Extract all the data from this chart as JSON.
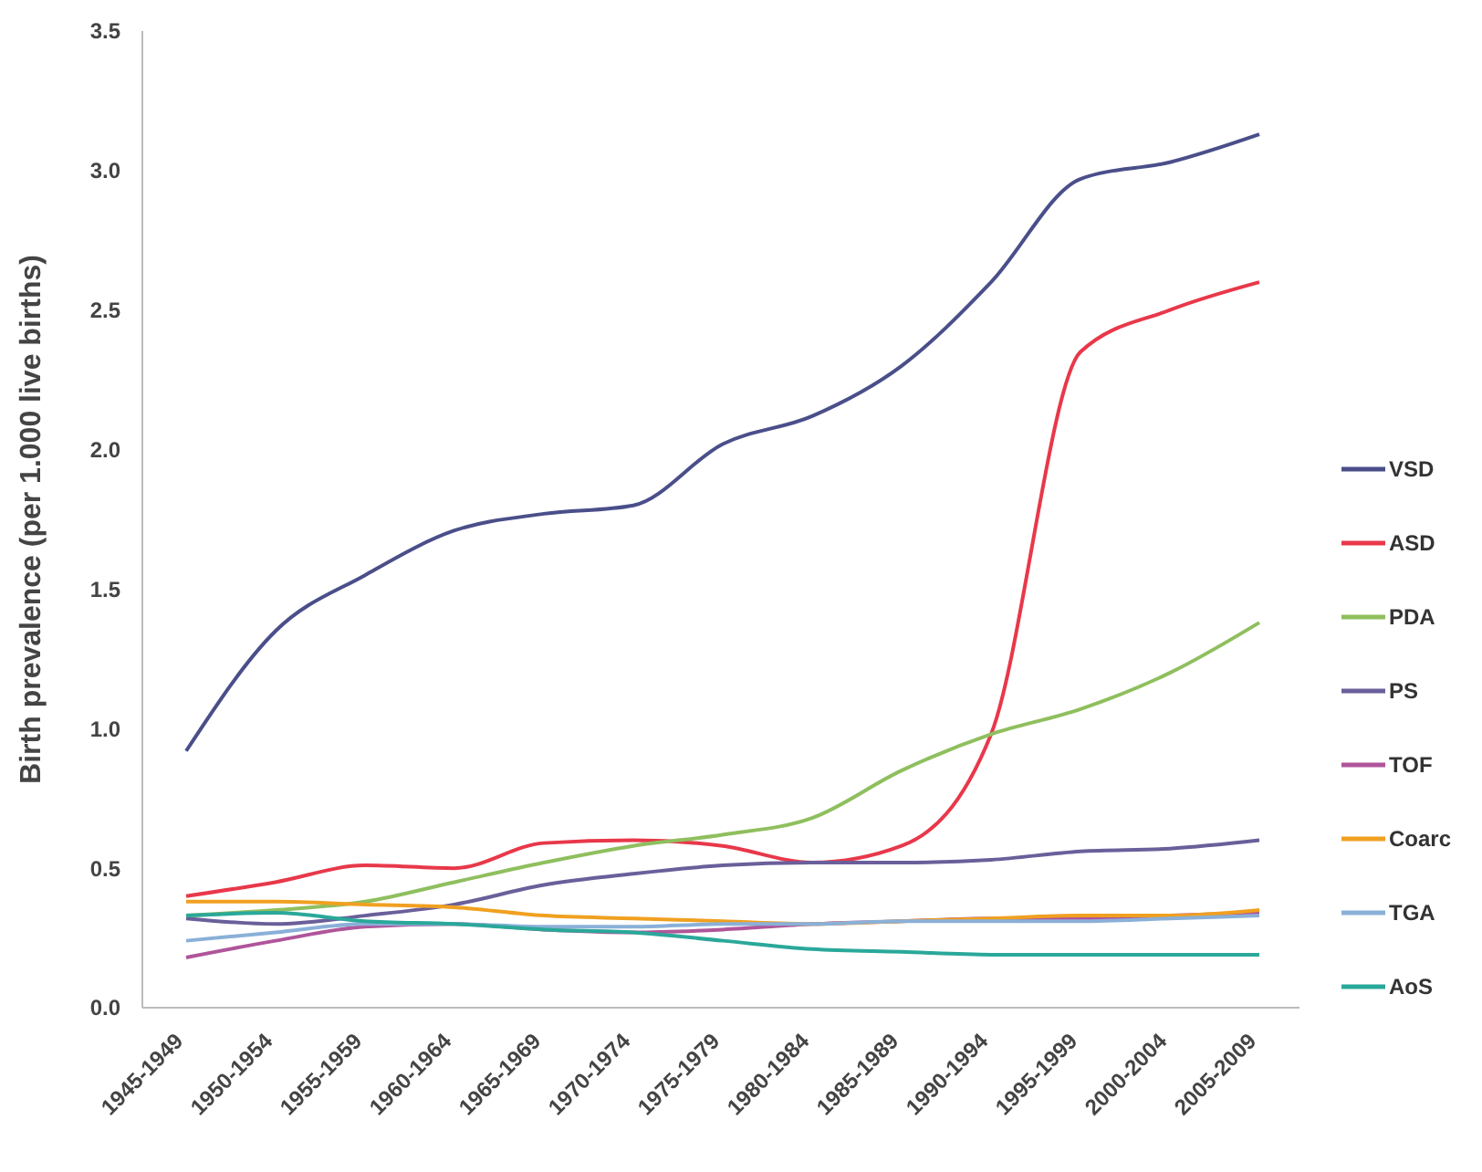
{
  "chart_data": {
    "type": "line",
    "ylabel": "Birth prevalence (per 1.000 live births)",
    "categories": [
      "1945-1949",
      "1950-1954",
      "1955-1959",
      "1960-1964",
      "1965-1969",
      "1970-1974",
      "1975-1979",
      "1980-1984",
      "1985-1989",
      "1990-1994",
      "1995-1999",
      "2000-2004",
      "2005-2009"
    ],
    "series": [
      {
        "name": "VSD",
        "color": "#4a4f8a",
        "values": [
          0.92,
          1.35,
          1.55,
          1.71,
          1.77,
          1.8,
          2.02,
          2.12,
          2.3,
          2.6,
          2.97,
          3.03,
          3.13
        ]
      },
      {
        "name": "ASD",
        "color": "#e8384a",
        "values": [
          0.4,
          0.45,
          0.51,
          0.5,
          0.59,
          0.6,
          0.58,
          0.52,
          0.58,
          0.98,
          2.35,
          2.5,
          2.6
        ]
      },
      {
        "name": "PDA",
        "color": "#8fbf5e",
        "values": [
          0.33,
          0.35,
          0.38,
          0.45,
          0.52,
          0.58,
          0.62,
          0.68,
          0.85,
          0.98,
          1.07,
          1.2,
          1.38
        ]
      },
      {
        "name": "PS",
        "color": "#6a5f9a",
        "values": [
          0.32,
          0.3,
          0.33,
          0.37,
          0.44,
          0.48,
          0.51,
          0.52,
          0.52,
          0.53,
          0.56,
          0.57,
          0.6
        ]
      },
      {
        "name": "TOF",
        "color": "#b0559a",
        "values": [
          0.18,
          0.24,
          0.29,
          0.3,
          0.28,
          0.27,
          0.28,
          0.3,
          0.31,
          0.32,
          0.32,
          0.33,
          0.34
        ]
      },
      {
        "name": "Coarc",
        "color": "#f0a020",
        "values": [
          0.38,
          0.38,
          0.37,
          0.36,
          0.33,
          0.32,
          0.31,
          0.3,
          0.31,
          0.32,
          0.33,
          0.33,
          0.35
        ]
      },
      {
        "name": "TGA",
        "color": "#8ab0d8",
        "values": [
          0.24,
          0.27,
          0.3,
          0.3,
          0.29,
          0.29,
          0.3,
          0.3,
          0.31,
          0.31,
          0.31,
          0.32,
          0.33
        ]
      },
      {
        "name": "AoS",
        "color": "#2aa89a",
        "values": [
          0.33,
          0.34,
          0.31,
          0.3,
          0.28,
          0.27,
          0.24,
          0.21,
          0.2,
          0.19,
          0.19,
          0.19,
          0.19
        ]
      }
    ],
    "ylim": [
      0,
      3.5
    ],
    "yticks": [
      {
        "value": 0,
        "label": "0.0"
      },
      {
        "value": 0.5,
        "label": "0.5"
      },
      {
        "value": 1,
        "label": "1.0"
      },
      {
        "value": 1.5,
        "label": "1.5"
      },
      {
        "value": 2,
        "label": "2.0"
      },
      {
        "value": 2.5,
        "label": "2.5"
      },
      {
        "value": 3,
        "label": "3.0"
      },
      {
        "value": 3.5,
        "label": "3.5"
      }
    ],
    "grid": false,
    "legend": "right",
    "marker": "none",
    "line_style": "solid"
  }
}
